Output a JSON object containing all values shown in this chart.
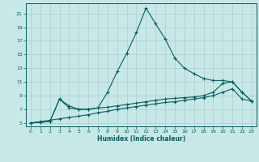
{
  "xlabel": "Humidex (Indice chaleur)",
  "ylabel": "",
  "bg_color": "#c8e8e8",
  "grid_color": "#b0cccc",
  "line_color": "#006060",
  "xlim": [
    -0.5,
    23.5
  ],
  "ylim": [
    4.5,
    22.5
  ],
  "yticks": [
    5,
    7,
    9,
    11,
    13,
    15,
    17,
    19,
    21
  ],
  "xticks": [
    0,
    1,
    2,
    3,
    4,
    5,
    6,
    7,
    8,
    9,
    10,
    11,
    12,
    13,
    14,
    15,
    16,
    17,
    18,
    19,
    20,
    21,
    22,
    23
  ],
  "line1_x": [
    0,
    1,
    2,
    3,
    4,
    5,
    6,
    7,
    8,
    9,
    10,
    11,
    12,
    13,
    14,
    15,
    16,
    17,
    18,
    19,
    20,
    21,
    22,
    23
  ],
  "line1_y": [
    5.0,
    5.1,
    5.2,
    8.5,
    7.2,
    7.0,
    7.0,
    7.2,
    9.5,
    12.5,
    15.2,
    18.2,
    21.8,
    19.5,
    17.3,
    14.5,
    13.0,
    12.2,
    11.5,
    11.2,
    11.2,
    11.0,
    9.5,
    8.2
  ],
  "line2_x": [
    0,
    1,
    2,
    3,
    4,
    5,
    6,
    7,
    8,
    9,
    10,
    11,
    12,
    13,
    14,
    15,
    16,
    17,
    18,
    19,
    20,
    21,
    22,
    23
  ],
  "line2_y": [
    5.0,
    5.1,
    5.2,
    8.5,
    7.5,
    7.0,
    7.0,
    7.2,
    7.3,
    7.5,
    7.7,
    7.9,
    8.1,
    8.3,
    8.5,
    8.6,
    8.7,
    8.8,
    9.0,
    9.5,
    10.8,
    11.0,
    9.5,
    8.2
  ],
  "line3_x": [
    0,
    1,
    2,
    3,
    4,
    5,
    6,
    7,
    8,
    9,
    10,
    11,
    12,
    13,
    14,
    15,
    16,
    17,
    18,
    19,
    20,
    21,
    22,
    23
  ],
  "line3_y": [
    5.0,
    5.2,
    5.4,
    5.6,
    5.8,
    6.0,
    6.2,
    6.5,
    6.7,
    7.0,
    7.2,
    7.4,
    7.6,
    7.8,
    8.0,
    8.1,
    8.3,
    8.5,
    8.7,
    9.0,
    9.5,
    10.0,
    8.5,
    8.2
  ]
}
